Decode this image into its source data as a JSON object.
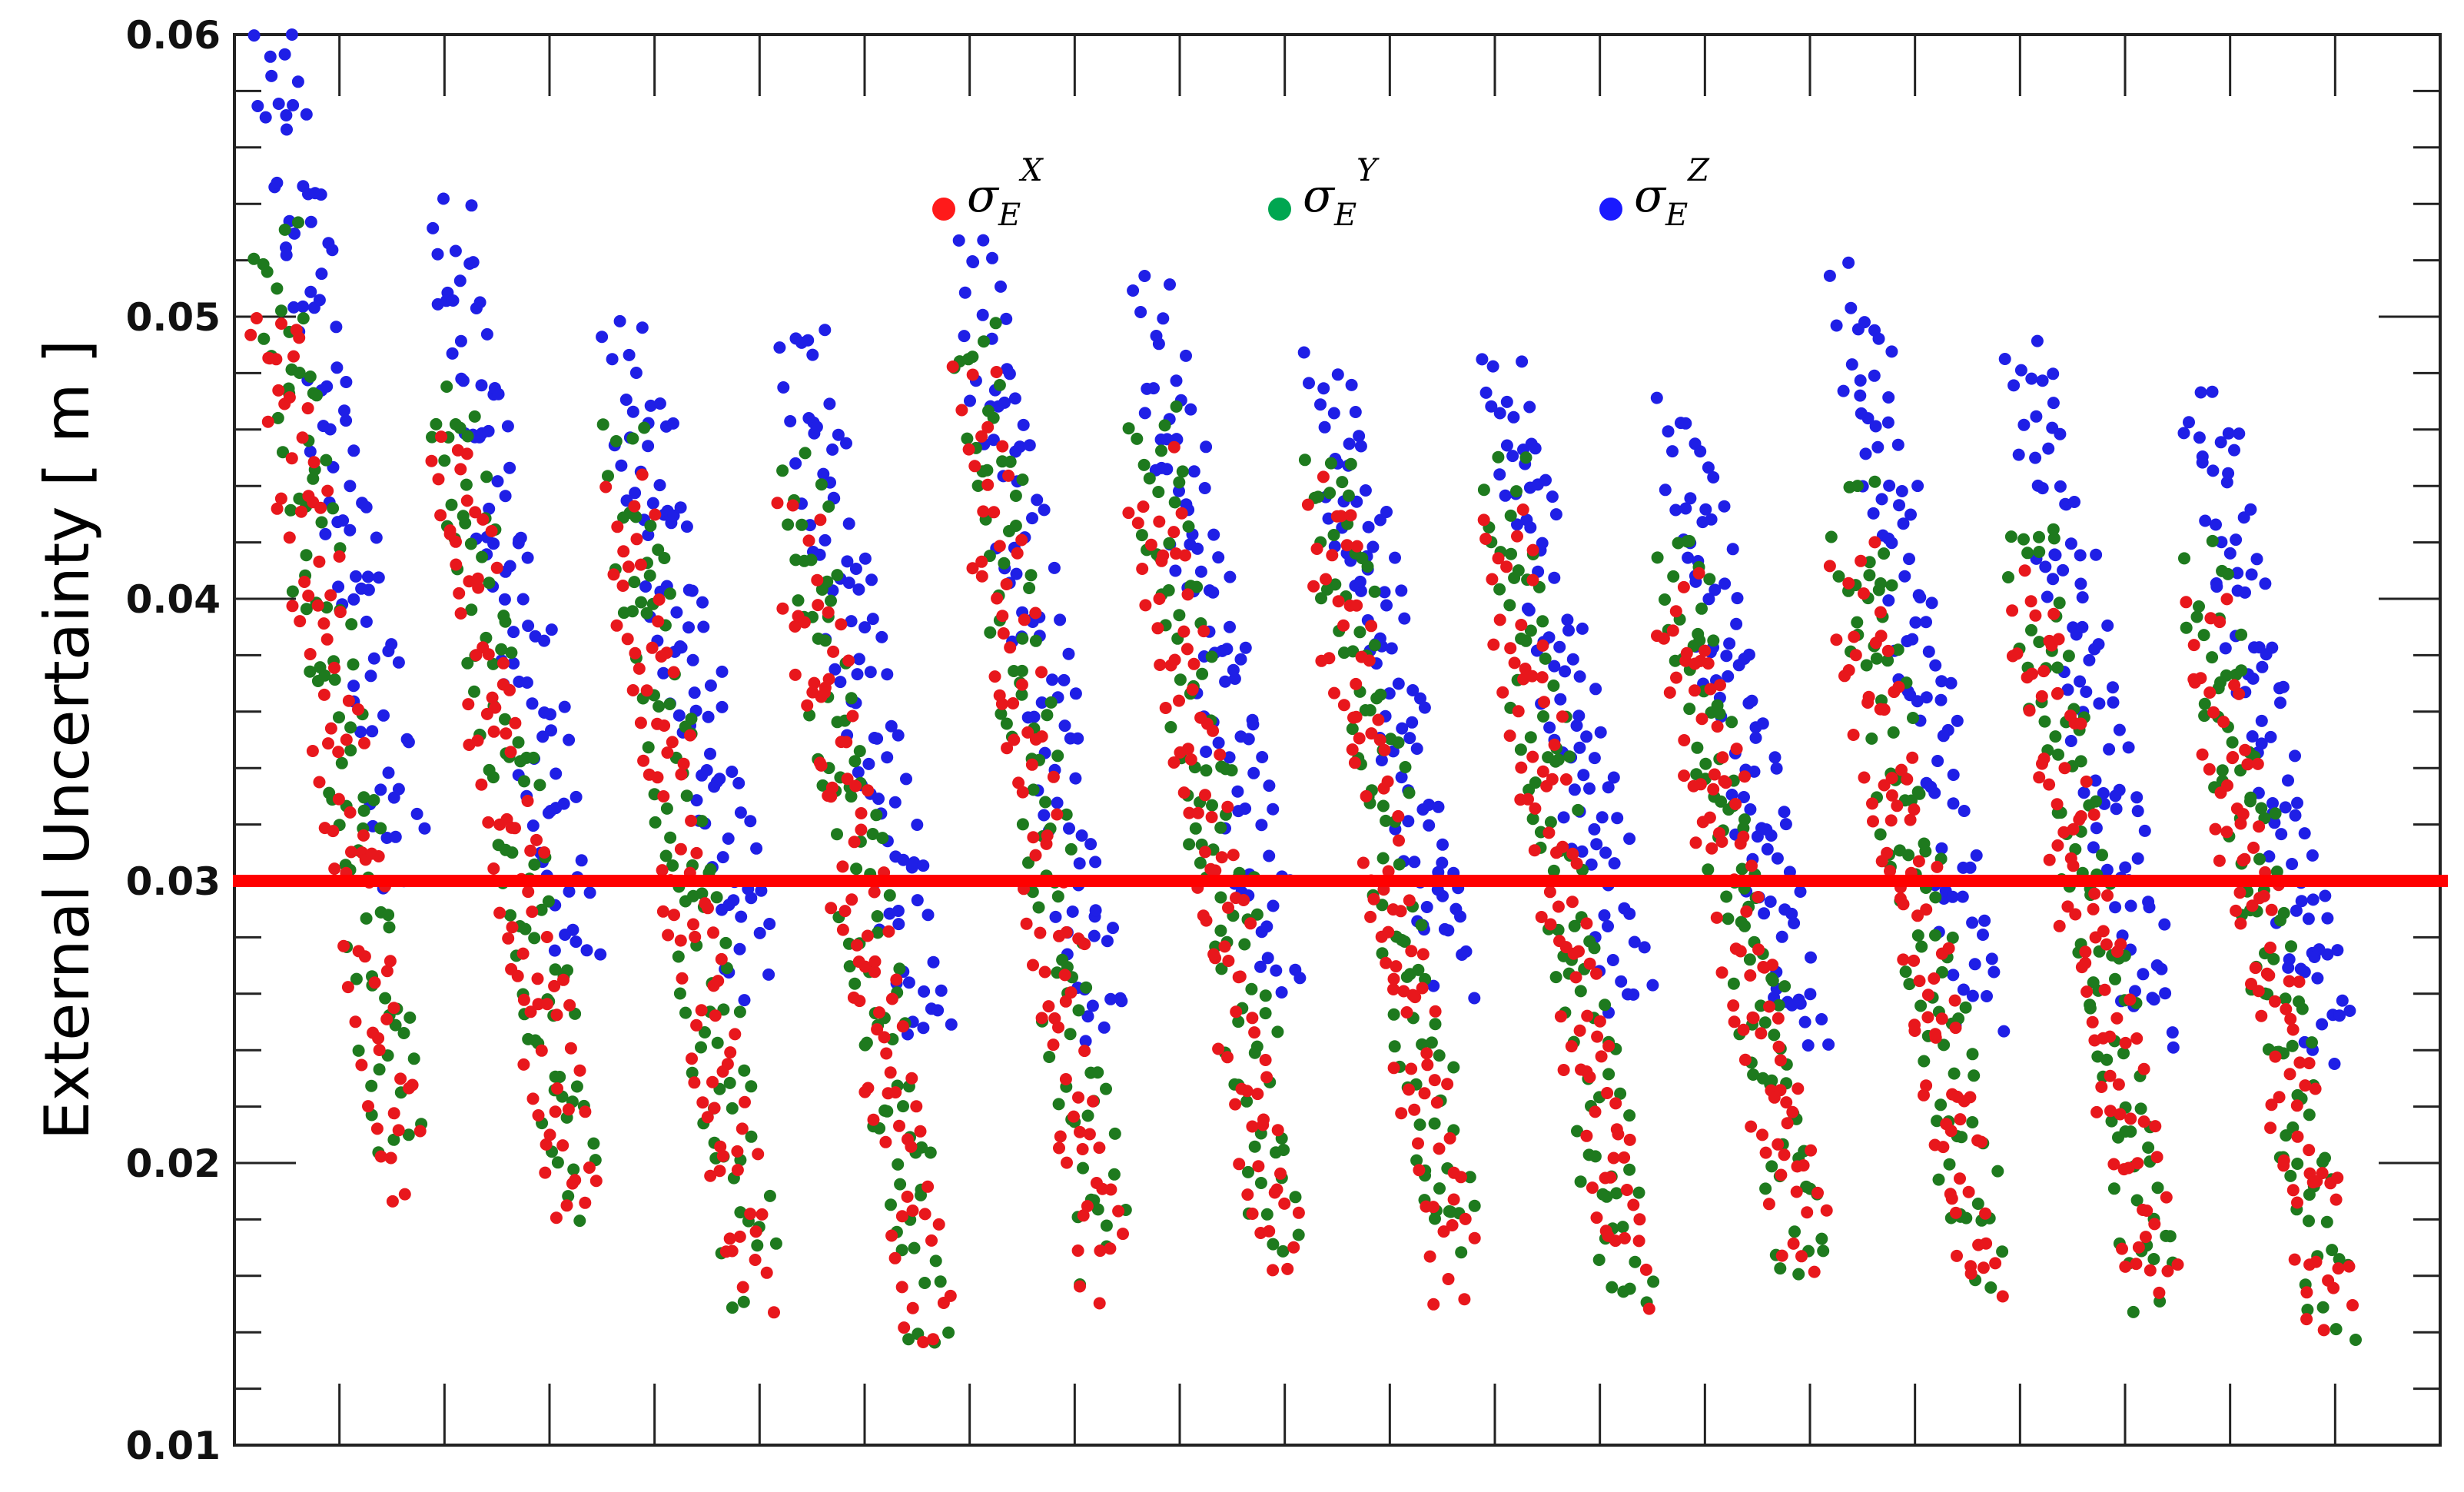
{
  "chart_data": {
    "type": "scatter",
    "ylabel": "External Uncertainty [ m ]",
    "ylim": [
      0.01,
      0.06
    ],
    "yticks": [
      "0.01",
      "0.02",
      "0.03",
      "0.04",
      "0.05",
      "0.06"
    ],
    "x_tick_count": 19,
    "reference_line": {
      "y": 0.03,
      "color": "#ff0000"
    },
    "legend": [
      {
        "symbol": "σ",
        "sub": "E",
        "sup": "X",
        "color": "#ff1a1a"
      },
      {
        "symbol": "σ",
        "sub": "E",
        "sup": "Y",
        "color": "#00a651"
      },
      {
        "symbol": "σ",
        "sub": "E",
        "sup": "Z",
        "color": "#1a1aff"
      }
    ],
    "series": [
      {
        "color": "#ff1a1a",
        "marker_color": "#e8171c",
        "bands": [
          [
            0.05,
            0.02
          ],
          [
            0.045,
            0.018
          ],
          [
            0.043,
            0.016
          ],
          [
            0.042,
            0.015
          ],
          [
            0.047,
            0.016
          ],
          [
            0.044,
            0.017
          ],
          [
            0.043,
            0.016
          ],
          [
            0.042,
            0.016
          ],
          [
            0.04,
            0.017
          ],
          [
            0.041,
            0.016
          ],
          [
            0.04,
            0.016
          ],
          [
            0.039,
            0.015
          ]
        ]
      },
      {
        "color": "#00a651",
        "marker_color": "#1e7a1e",
        "bands": [
          [
            0.052,
            0.021
          ],
          [
            0.047,
            0.019
          ],
          [
            0.045,
            0.016
          ],
          [
            0.044,
            0.015
          ],
          [
            0.049,
            0.017
          ],
          [
            0.046,
            0.018
          ],
          [
            0.045,
            0.017
          ],
          [
            0.044,
            0.015
          ],
          [
            0.042,
            0.017
          ],
          [
            0.043,
            0.017
          ],
          [
            0.042,
            0.016
          ],
          [
            0.041,
            0.015
          ]
        ]
      },
      {
        "color": "#1a1aff",
        "marker_color": "#1f1fe6",
        "bands": [
          [
            0.06,
            0.031
          ],
          [
            0.053,
            0.028
          ],
          [
            0.049,
            0.027
          ],
          [
            0.049,
            0.025
          ],
          [
            0.052,
            0.025
          ],
          [
            0.05,
            0.027
          ],
          [
            0.048,
            0.027
          ],
          [
            0.048,
            0.026
          ],
          [
            0.046,
            0.025
          ],
          [
            0.051,
            0.026
          ],
          [
            0.048,
            0.025
          ],
          [
            0.047,
            0.024
          ]
        ]
      }
    ]
  }
}
